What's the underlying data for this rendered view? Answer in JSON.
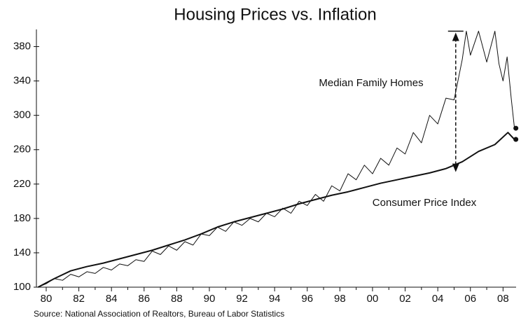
{
  "chart_data": {
    "type": "line",
    "title": "Housing Prices vs. Inflation",
    "source": "Source:  National Association of Realtors, Bureau of Labor Statistics",
    "annotations": [
      "Median Family Homes",
      "Consumer Price Index"
    ],
    "xlim": [
      1979.4,
      2008.8
    ],
    "ylim": [
      100,
      400
    ],
    "xticks": [
      {
        "value": 1980,
        "label": "80"
      },
      {
        "value": 1982,
        "label": "82"
      },
      {
        "value": 1984,
        "label": "84"
      },
      {
        "value": 1986,
        "label": "86"
      },
      {
        "value": 1988,
        "label": "88"
      },
      {
        "value": 1990,
        "label": "90"
      },
      {
        "value": 1992,
        "label": "92"
      },
      {
        "value": 1994,
        "label": "94"
      },
      {
        "value": 1996,
        "label": "96"
      },
      {
        "value": 1998,
        "label": "98"
      },
      {
        "value": 2000,
        "label": "00"
      },
      {
        "value": 2002,
        "label": "02"
      },
      {
        "value": 2004,
        "label": "04"
      },
      {
        "value": 2006,
        "label": "06"
      },
      {
        "value": 2008,
        "label": "08"
      }
    ],
    "xminor": [
      1981,
      1983,
      1985,
      1987,
      1989,
      1991,
      1993,
      1995,
      1997,
      1999,
      2001,
      2003,
      2005,
      2007
    ],
    "yticks": [
      100,
      140,
      180,
      220,
      260,
      300,
      340,
      380
    ],
    "grid": false,
    "end_markers": true,
    "arrow": {
      "x": 2005.1,
      "top": 398,
      "bottom": 234
    },
    "series": [
      {
        "name": "Median Family Homes",
        "color": "#111111",
        "width": 1,
        "x": [
          1979.5,
          1980,
          1980.5,
          1981,
          1981.5,
          1982,
          1982.5,
          1983,
          1983.5,
          1984,
          1984.5,
          1985,
          1985.5,
          1986,
          1986.5,
          1987,
          1987.5,
          1988,
          1988.5,
          1989,
          1989.5,
          1990,
          1990.5,
          1991,
          1991.5,
          1992,
          1992.5,
          1993,
          1993.5,
          1994,
          1994.5,
          1995,
          1995.5,
          1996,
          1996.5,
          1997,
          1997.5,
          1998,
          1998.5,
          1999,
          1999.5,
          2000,
          2000.5,
          2001,
          2001.5,
          2002,
          2002.5,
          2003,
          2003.5,
          2004,
          2004.5,
          2005,
          2005.5,
          2005.75,
          2006,
          2006.5,
          2006.75,
          2007,
          2007.25,
          2007.5,
          2007.75,
          2008,
          2008.25,
          2008.5,
          2008.7
        ],
        "values": [
          100,
          104,
          110,
          108,
          115,
          112,
          118,
          116,
          123,
          120,
          127,
          125,
          132,
          130,
          142,
          138,
          148,
          143,
          153,
          149,
          162,
          160,
          170,
          165,
          176,
          172,
          180,
          176,
          186,
          182,
          192,
          186,
          200,
          195,
          208,
          200,
          218,
          212,
          232,
          225,
          242,
          232,
          250,
          242,
          262,
          255,
          280,
          268,
          300,
          290,
          320,
          318,
          365,
          398,
          370,
          398,
          380,
          362,
          380,
          398,
          360,
          340,
          368,
          320,
          285
        ]
      },
      {
        "name": "Consumer Price Index",
        "color": "#111111",
        "width": 2,
        "x": [
          1979.5,
          1980.5,
          1981.5,
          1982.5,
          1983.5,
          1984.5,
          1985.5,
          1986.5,
          1987.5,
          1988.5,
          1989.5,
          1990.5,
          1991.5,
          1992.5,
          1993.5,
          1994.5,
          1995.5,
          1996.5,
          1997.5,
          1998.5,
          1999.5,
          2000.5,
          2001.5,
          2002.5,
          2003.5,
          2004.5,
          2005.5,
          2006.5,
          2007.5,
          2008.3,
          2008.7
        ],
        "values": [
          100,
          110,
          119,
          124,
          128,
          133,
          138,
          143,
          149,
          155,
          162,
          170,
          176,
          181,
          186,
          191,
          197,
          202,
          207,
          211,
          216,
          221,
          225,
          229,
          233,
          238,
          246,
          258,
          266,
          280,
          272
        ]
      }
    ]
  }
}
